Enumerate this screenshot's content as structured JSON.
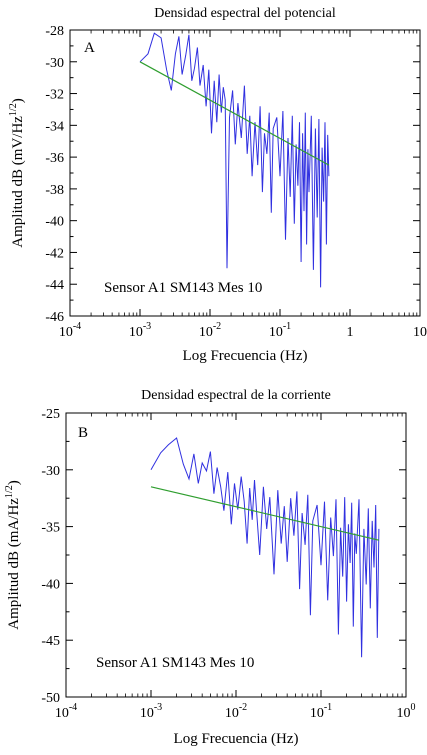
{
  "chart_data": [
    {
      "type": "line",
      "panel_letter": "A",
      "title": "Densidad espectral del potencial",
      "xlabel": "Log Frecuencia (Hz)",
      "ylabel_main": "Amplitud dB (mV/Hz",
      "ylabel_sup": "1/2",
      "ylabel_close": ")",
      "annotation": "Sensor A1 SM143 Mes 10",
      "x_scale": "log",
      "xlim": [
        0.0001,
        10
      ],
      "ylim": [
        -46,
        -28
      ],
      "x_ticks": [
        {
          "value": 0.0001,
          "base": "10",
          "exp": "-4"
        },
        {
          "value": 0.001,
          "base": "10",
          "exp": "-3"
        },
        {
          "value": 0.01,
          "base": "10",
          "exp": "-2"
        },
        {
          "value": 0.1,
          "base": "10",
          "exp": "-1"
        },
        {
          "value": 1,
          "base": "1",
          "exp": ""
        },
        {
          "value": 10,
          "base": "10",
          "exp": ""
        }
      ],
      "y_ticks": [
        -28,
        -30,
        -32,
        -34,
        -36,
        -38,
        -40,
        -42,
        -44,
        -46
      ],
      "grid": false,
      "series": [
        {
          "color": "#3030e0",
          "x": [
            0.001,
            0.0013,
            0.0016,
            0.002,
            0.0024,
            0.0028,
            0.0032,
            0.0036,
            0.004,
            0.0045,
            0.005,
            0.0055,
            0.006,
            0.0066,
            0.0072,
            0.008,
            0.0088,
            0.0096,
            0.0105,
            0.0115,
            0.0125,
            0.0135,
            0.0145,
            0.0155,
            0.0165,
            0.0175,
            0.019,
            0.021,
            0.023,
            0.025,
            0.028,
            0.031,
            0.034,
            0.037,
            0.04,
            0.044,
            0.048,
            0.052,
            0.056,
            0.06,
            0.065,
            0.07,
            0.075,
            0.08,
            0.09,
            0.1,
            0.11,
            0.12,
            0.13,
            0.14,
            0.15,
            0.16,
            0.17,
            0.18,
            0.19,
            0.2,
            0.21,
            0.22,
            0.23,
            0.24,
            0.25,
            0.26,
            0.28,
            0.3,
            0.32,
            0.34,
            0.36,
            0.38,
            0.4,
            0.42,
            0.44,
            0.46,
            0.48,
            0.5
          ],
          "y": [
            -30,
            -29.5,
            -28.2,
            -28.5,
            -30.5,
            -31.8,
            -29.5,
            -28.4,
            -30.8,
            -29.6,
            -28.3,
            -31.2,
            -30.4,
            -29.1,
            -31.5,
            -30.2,
            -32.8,
            -30.5,
            -34.5,
            -31.2,
            -33.8,
            -30.8,
            -33.2,
            -31.6,
            -32.4,
            -43,
            -33.5,
            -31.8,
            -35.2,
            -32.6,
            -34.8,
            -31.5,
            -35.8,
            -33.4,
            -37.2,
            -33.8,
            -36.5,
            -32.8,
            -38.2,
            -34.5,
            -35.8,
            -33.2,
            -39.5,
            -34.2,
            -33.5,
            -37.2,
            -33.1,
            -41.2,
            -34.8,
            -38.5,
            -33.4,
            -40.2,
            -35.2,
            -37.8,
            -33.8,
            -42.6,
            -34.5,
            -39.4,
            -33.2,
            -41.5,
            -35.5,
            -38.2,
            -33.4,
            -43.1,
            -34.2,
            -39.8,
            -33.6,
            -44.2,
            -35.4,
            -38.8,
            -33.8,
            -41.5,
            -34.6,
            -37.2
          ]
        },
        {
          "color": "#2f9e2f",
          "x": [
            0.001,
            0.5
          ],
          "y": [
            -30,
            -36.5
          ]
        }
      ]
    },
    {
      "type": "line",
      "panel_letter": "B",
      "title": "Densidad espectral de la corriente",
      "xlabel": "Log Frecuencia (Hz)",
      "ylabel_main": "Amplitud dB (mA/Hz",
      "ylabel_sup": "1/2",
      "ylabel_close": ")",
      "annotation": "Sensor A1 SM143 Mes 10",
      "x_scale": "log",
      "xlim": [
        0.0001,
        1
      ],
      "ylim": [
        -50,
        -25
      ],
      "x_ticks": [
        {
          "value": 0.0001,
          "base": "10",
          "exp": "-4"
        },
        {
          "value": 0.001,
          "base": "10",
          "exp": "-3"
        },
        {
          "value": 0.01,
          "base": "10",
          "exp": "-2"
        },
        {
          "value": 0.1,
          "base": "10",
          "exp": "-1"
        },
        {
          "value": 1,
          "base": "10",
          "exp": "0"
        }
      ],
      "y_ticks": [
        -25,
        -30,
        -35,
        -40,
        -45,
        -50
      ],
      "grid": false,
      "series": [
        {
          "color": "#3030e0",
          "x": [
            0.001,
            0.0013,
            0.0016,
            0.002,
            0.0024,
            0.0028,
            0.0032,
            0.0036,
            0.004,
            0.0045,
            0.005,
            0.0055,
            0.006,
            0.0066,
            0.0072,
            0.008,
            0.0088,
            0.0096,
            0.0105,
            0.0115,
            0.0125,
            0.0135,
            0.0145,
            0.0155,
            0.0165,
            0.0175,
            0.019,
            0.021,
            0.023,
            0.025,
            0.028,
            0.031,
            0.034,
            0.037,
            0.04,
            0.044,
            0.048,
            0.052,
            0.056,
            0.06,
            0.065,
            0.07,
            0.075,
            0.08,
            0.09,
            0.1,
            0.11,
            0.12,
            0.13,
            0.14,
            0.15,
            0.16,
            0.17,
            0.18,
            0.19,
            0.2,
            0.21,
            0.22,
            0.23,
            0.24,
            0.25,
            0.26,
            0.28,
            0.3,
            0.32,
            0.34,
            0.36,
            0.38,
            0.4,
            0.42,
            0.44,
            0.46,
            0.48
          ],
          "y": [
            -30,
            -28.5,
            -27.8,
            -27.2,
            -29.5,
            -30.8,
            -28.6,
            -31.2,
            -29.4,
            -30.1,
            -28.4,
            -32.1,
            -29.8,
            -31.5,
            -33.6,
            -30.2,
            -34.8,
            -31.2,
            -33.5,
            -30.6,
            -32.8,
            -36.5,
            -31.6,
            -34.4,
            -30.9,
            -33.8,
            -37.5,
            -31.5,
            -35.2,
            -32.4,
            -39.2,
            -31.8,
            -36.5,
            -33.2,
            -38.1,
            -32.5,
            -35.8,
            -31.9,
            -40.5,
            -33.8,
            -36.6,
            -32.2,
            -42.8,
            -34.5,
            -33.1,
            -38.4,
            -32.8,
            -41.5,
            -34.2,
            -37.6,
            -32.6,
            -44.5,
            -35.1,
            -39.4,
            -32.4,
            -41.6,
            -34.8,
            -38.2,
            -32.9,
            -43.8,
            -35.6,
            -37.4,
            -32.6,
            -46.5,
            -35.2,
            -40.1,
            -33.4,
            -42.2,
            -34.5,
            -38.6,
            -33.1,
            -44.8,
            -35.2
          ]
        },
        {
          "color": "#2f9e2f",
          "x": [
            0.001,
            0.48
          ],
          "y": [
            -31.5,
            -36.2
          ]
        }
      ]
    }
  ]
}
